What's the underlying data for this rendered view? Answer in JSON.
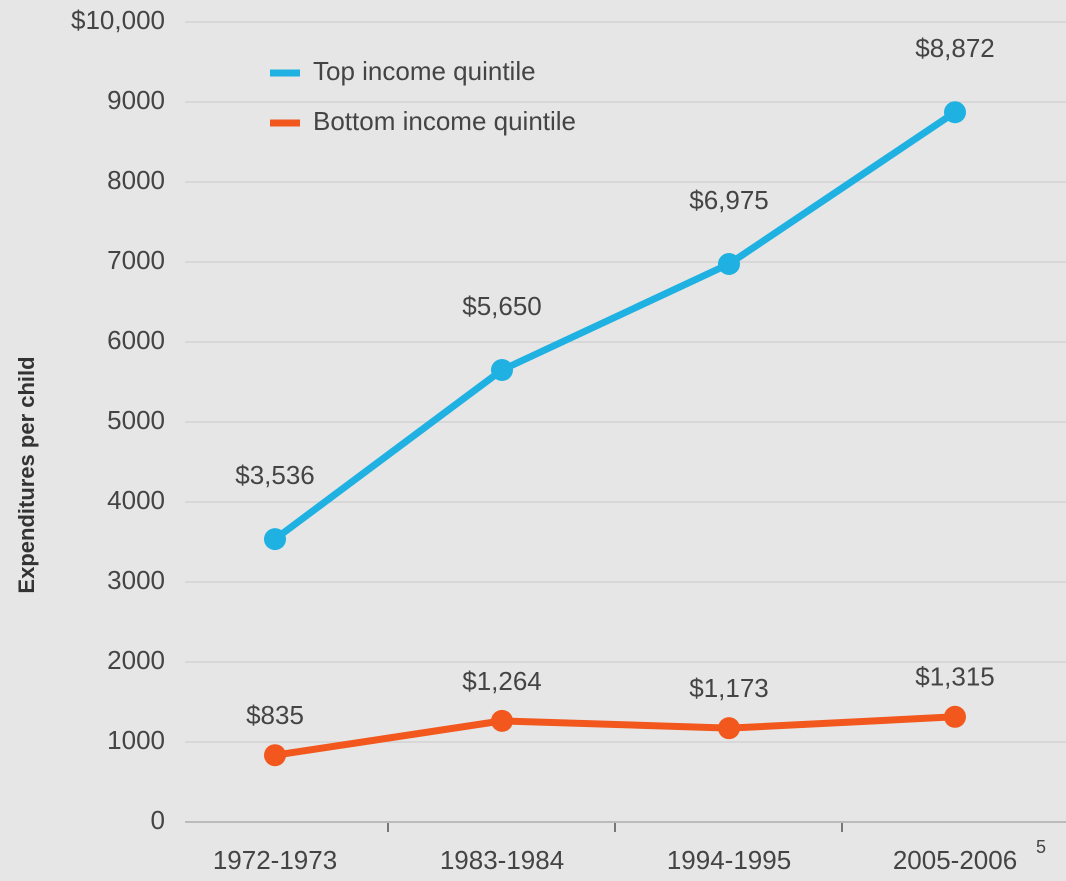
{
  "chart_data": {
    "type": "line",
    "y_label": "Expenditures per child",
    "categories": [
      "1972-1973",
      "1983-1984",
      "1994-1995",
      "2005-2006"
    ],
    "footnote": "5",
    "series": [
      {
        "name": "Top income quintile",
        "color": "#1eb1e1",
        "values": [
          3536,
          5650,
          6975,
          8872
        ],
        "value_labels": [
          "$3,536",
          "$5,650",
          "$6,975",
          "$8,872"
        ]
      },
      {
        "name": "Bottom income quintile",
        "color": "#f2581d",
        "values": [
          835,
          1264,
          1173,
          1315
        ],
        "value_labels": [
          "$835",
          "$1,264",
          "$1,173",
          "$1,315"
        ]
      }
    ],
    "ylim": [
      0,
      10000
    ],
    "yticks": [
      0,
      1000,
      2000,
      3000,
      4000,
      5000,
      6000,
      7000,
      8000,
      9000,
      {
        "value": 10000,
        "label": "$10,000"
      }
    ],
    "grid": true,
    "legend": "top-left"
  }
}
